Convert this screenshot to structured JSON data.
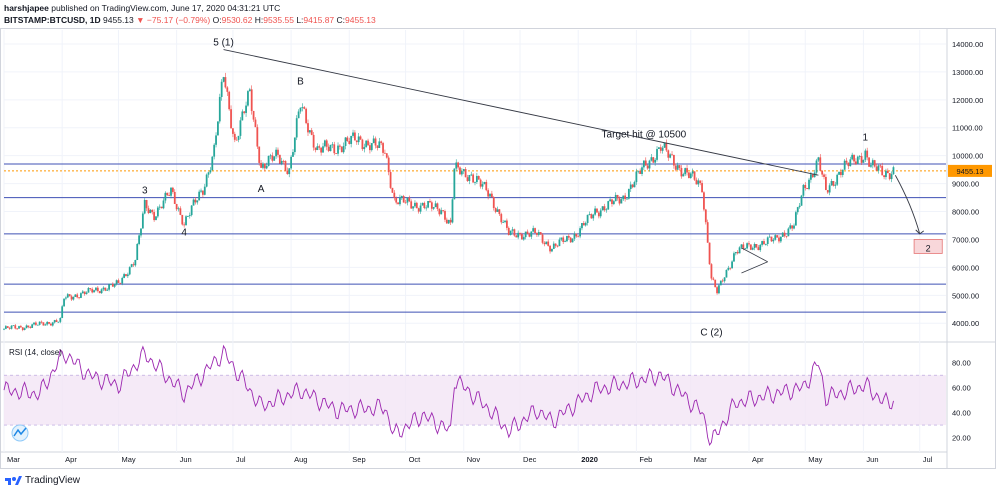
{
  "header": {
    "publisher": "harshjapee",
    "published_text": "published on TradingView.com, June 17, 2020 04:31:21 UTC",
    "symbol": "BITSTAMP:BTCUSD, 1D",
    "price": "9455.13",
    "change": "▼ −75.17 (−0.79%)",
    "o_label": "O:",
    "o_value": "9530.62",
    "h_label": "H:",
    "h_value": "9535.55",
    "l_label": "L:",
    "l_value": "9415.87",
    "c_label": "C:",
    "c_value": "9455.13"
  },
  "footer": {
    "brand": "TradingView",
    "logo_icon": "tradingview-logo-icon"
  },
  "colors": {
    "up": "#26a69a",
    "down": "#ef5350",
    "rsi": "#9c27b0",
    "hline": "#3f51b5",
    "price_tag": "#ff9800"
  },
  "chart_data": {
    "type": "candlestick",
    "title": "BITSTAMP:BTCUSD, 1D",
    "ylim": [
      3400,
      14500
    ],
    "y_ticks": [
      "4000.00",
      "5000.00",
      "6000.00",
      "7000.00",
      "8000.00",
      "9000.00",
      "10000.00",
      "11000.00",
      "12000.00",
      "13000.00",
      "14000.00"
    ],
    "x_ticks": [
      "Mar",
      "Apr",
      "May",
      "Jun",
      "Jul",
      "Aug",
      "Sep",
      "Oct",
      "Nov",
      "Dec",
      "2020",
      "Feb",
      "Mar",
      "Apr",
      "May",
      "Jun",
      "Jul"
    ],
    "last_price_label": "9455.13",
    "close_path": [
      [
        "2019-03-01",
        3800
      ],
      [
        "2019-03-15",
        3900
      ],
      [
        "2019-03-31",
        4100
      ],
      [
        "2019-04-02",
        4900
      ],
      [
        "2019-04-20",
        5200
      ],
      [
        "2019-05-01",
        5400
      ],
      [
        "2019-05-10",
        6300
      ],
      [
        "2019-05-15",
        8200
      ],
      [
        "2019-05-20",
        7900
      ],
      [
        "2019-05-29",
        8700
      ],
      [
        "2019-06-05",
        7600
      ],
      [
        "2019-06-15",
        8800
      ],
      [
        "2019-06-21",
        10200
      ],
      [
        "2019-06-26",
        12900
      ],
      [
        "2019-07-02",
        10500
      ],
      [
        "2019-07-10",
        12200
      ],
      [
        "2019-07-16",
        9600
      ],
      [
        "2019-07-25",
        10000
      ],
      [
        "2019-07-31",
        9500
      ],
      [
        "2019-08-06",
        11800
      ],
      [
        "2019-08-15",
        10200
      ],
      [
        "2019-08-25",
        10300
      ],
      [
        "2019-09-05",
        10600
      ],
      [
        "2019-09-20",
        10200
      ],
      [
        "2019-09-25",
        8400
      ],
      [
        "2019-10-10",
        8200
      ],
      [
        "2019-10-20",
        8100
      ],
      [
        "2019-10-25",
        7500
      ],
      [
        "2019-10-27",
        9500
      ],
      [
        "2019-11-05",
        9300
      ],
      [
        "2019-11-15",
        8600
      ],
      [
        "2019-11-25",
        7200
      ],
      [
        "2019-12-10",
        7200
      ],
      [
        "2019-12-18",
        6700
      ],
      [
        "2019-12-31",
        7200
      ],
      [
        "2020-01-10",
        8000
      ],
      [
        "2020-01-25",
        8500
      ],
      [
        "2020-02-05",
        9600
      ],
      [
        "2020-02-14",
        10300
      ],
      [
        "2020-02-25",
        9500
      ],
      [
        "2020-03-07",
        8900
      ],
      [
        "2020-03-12",
        5600
      ],
      [
        "2020-03-15",
        5100
      ],
      [
        "2020-03-25",
        6600
      ],
      [
        "2020-04-05",
        6800
      ],
      [
        "2020-04-15",
        7000
      ],
      [
        "2020-04-25",
        7500
      ],
      [
        "2020-04-30",
        8800
      ],
      [
        "2020-05-08",
        9800
      ],
      [
        "2020-05-12",
        8700
      ],
      [
        "2020-05-20",
        9500
      ],
      [
        "2020-06-02",
        10100
      ],
      [
        "2020-06-05",
        9600
      ],
      [
        "2020-06-12",
        9400
      ],
      [
        "2020-06-17",
        9455
      ]
    ],
    "horizontal_levels": [
      9700,
      9455.13,
      8500,
      7200,
      5400,
      4400
    ],
    "trendline": {
      "from": [
        "2019-06-26",
        13800
      ],
      "to": [
        "2020-05-08",
        9300
      ]
    },
    "projection_arrow": {
      "from": [
        "2020-06-18",
        9300
      ],
      "to": [
        "2020-07-01",
        7200
      ]
    },
    "target_box": {
      "x": [
        "2020-06-28",
        "2020-07-13"
      ],
      "y": [
        6500,
        7000
      ],
      "label": "2"
    },
    "small_wedge": {
      "upper": [
        [
          "2020-03-28",
          6700
        ],
        [
          "2020-04-11",
          6200
        ]
      ],
      "lower": [
        [
          "2020-03-28",
          5800
        ],
        [
          "2020-04-11",
          6200
        ]
      ]
    },
    "annotations": [
      {
        "text": "5 (1)",
        "x": "2019-06-26",
        "y": 13950
      },
      {
        "text": "B",
        "x": "2019-08-06",
        "y": 12550
      },
      {
        "text": "3",
        "x": "2019-05-15",
        "y": 8650
      },
      {
        "text": "4",
        "x": "2019-06-05",
        "y": 7150
      },
      {
        "text": "A",
        "x": "2019-07-16",
        "y": 8700
      },
      {
        "text": "Target hit @ 10500",
        "x": "2020-02-05",
        "y": 10650
      },
      {
        "text": "1",
        "x": "2020-06-02",
        "y": 10550
      },
      {
        "text": "C (2)",
        "x": "2020-03-12",
        "y": 3560
      }
    ],
    "rsi": {
      "label": "RSI (14, close)",
      "ylim": [
        10,
        95
      ],
      "y_ticks": [
        "20.00",
        "40.00",
        "60.00",
        "80.00"
      ],
      "band": [
        30,
        70
      ],
      "path": [
        [
          "2019-03-01",
          58
        ],
        [
          "2019-03-20",
          55
        ],
        [
          "2019-04-02",
          88
        ],
        [
          "2019-04-15",
          70
        ],
        [
          "2019-05-01",
          62
        ],
        [
          "2019-05-15",
          87
        ],
        [
          "2019-06-05",
          55
        ],
        [
          "2019-06-26",
          88
        ],
        [
          "2019-07-16",
          45
        ],
        [
          "2019-08-06",
          58
        ],
        [
          "2019-08-25",
          42
        ],
        [
          "2019-09-20",
          44
        ],
        [
          "2019-09-25",
          22
        ],
        [
          "2019-10-10",
          38
        ],
        [
          "2019-10-25",
          25
        ],
        [
          "2019-10-27",
          67
        ],
        [
          "2019-11-15",
          42
        ],
        [
          "2019-11-25",
          25
        ],
        [
          "2019-12-10",
          42
        ],
        [
          "2019-12-18",
          33
        ],
        [
          "2020-01-10",
          58
        ],
        [
          "2020-02-14",
          70
        ],
        [
          "2020-03-07",
          40
        ],
        [
          "2020-03-12",
          16
        ],
        [
          "2020-03-25",
          48
        ],
        [
          "2020-04-15",
          55
        ],
        [
          "2020-04-30",
          60
        ],
        [
          "2020-05-08",
          80
        ],
        [
          "2020-05-12",
          52
        ],
        [
          "2020-06-02",
          62
        ],
        [
          "2020-06-12",
          48
        ],
        [
          "2020-06-17",
          50
        ]
      ]
    }
  }
}
